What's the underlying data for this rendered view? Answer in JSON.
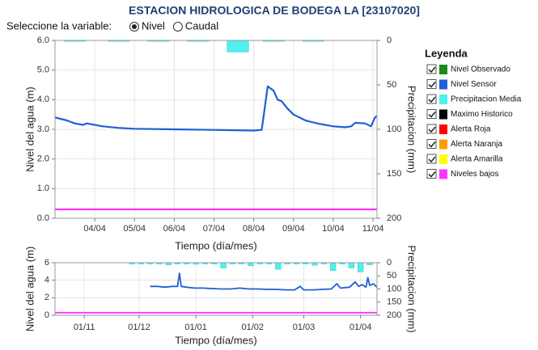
{
  "header": {
    "title": "ESTACION HIDROLOGICA DE BODEGA LA [23107020]"
  },
  "selector": {
    "label": "Seleccione la variable:",
    "options": [
      "Nivel",
      "Caudal"
    ],
    "selected": 0
  },
  "legend": {
    "title": "Leyenda",
    "items": [
      {
        "name": "Nivel Observado",
        "color": "#1a8a1a",
        "checked": true
      },
      {
        "name": "Nivel Sensor",
        "color": "#1f5fd6",
        "checked": true
      },
      {
        "name": "Precipitacion Media",
        "color": "#4ef0f0",
        "checked": true
      },
      {
        "name": "Maximo Historico",
        "color": "#000000",
        "checked": true
      },
      {
        "name": "Alerta Roja",
        "color": "#ff0000",
        "checked": true
      },
      {
        "name": "Alerta Naranja",
        "color": "#ff9900",
        "checked": true
      },
      {
        "name": "Alerta Amarilla",
        "color": "#ffff00",
        "checked": true
      },
      {
        "name": "Niveles bajos",
        "color": "#ff33ff",
        "checked": true
      }
    ]
  },
  "chart_data": [
    {
      "type": "line",
      "xlabel": "Tiempo (día/mes)",
      "ylabel": "Nivel del agua (m)",
      "y2label": "Precipitacion (mm)",
      "xlim": [
        3,
        11.1
      ],
      "xticks": [
        {
          "value": 4,
          "label": "04/04"
        },
        {
          "value": 5,
          "label": "05/04"
        },
        {
          "value": 6,
          "label": "06/04"
        },
        {
          "value": 7,
          "label": "07/04"
        },
        {
          "value": 8,
          "label": "08/04"
        },
        {
          "value": 9,
          "label": "09/04"
        },
        {
          "value": 10,
          "label": "10/04"
        },
        {
          "value": 11,
          "label": "11/04"
        }
      ],
      "ylim": [
        0,
        6
      ],
      "yticks": [
        {
          "value": 0,
          "label": "0.0"
        },
        {
          "value": 1,
          "label": "1.0"
        },
        {
          "value": 2,
          "label": "2.0"
        },
        {
          "value": 3,
          "label": "3.0"
        },
        {
          "value": 4,
          "label": "4.0"
        },
        {
          "value": 5,
          "label": "5.0"
        },
        {
          "value": 6,
          "label": "6.0"
        }
      ],
      "y2lim": [
        0,
        200
      ],
      "y2ticks": [
        0,
        50,
        100,
        150,
        200
      ],
      "y2_inverted": true,
      "grid": true,
      "series": [
        {
          "type": "bar",
          "axis": "y2",
          "color": "#4ef0f0",
          "x": [
            3.5,
            4.6,
            5.6,
            6.6,
            7.6,
            8.5,
            9.5
          ],
          "values": [
            1,
            1,
            1,
            1,
            13,
            1,
            1
          ]
        },
        {
          "type": "line",
          "color": "#ff33ff",
          "x": [
            3,
            11.1
          ],
          "values": [
            0.3,
            0.3
          ]
        },
        {
          "type": "line",
          "color": "#1f5fd6",
          "x": [
            3.0,
            3.3,
            3.5,
            3.7,
            3.8,
            4.2,
            4.6,
            5.0,
            6.0,
            7.0,
            7.5,
            8.0,
            8.2,
            8.35,
            8.5,
            8.6,
            8.7,
            8.85,
            9.0,
            9.3,
            9.6,
            10.0,
            10.3,
            10.45,
            10.55,
            10.8,
            10.95,
            11.05,
            11.1
          ],
          "values": [
            3.4,
            3.3,
            3.2,
            3.15,
            3.2,
            3.1,
            3.05,
            3.02,
            3.0,
            2.98,
            2.97,
            2.96,
            2.98,
            4.45,
            4.3,
            4.0,
            3.95,
            3.7,
            3.5,
            3.3,
            3.2,
            3.1,
            3.07,
            3.1,
            3.22,
            3.2,
            3.1,
            3.4,
            3.45
          ]
        }
      ]
    },
    {
      "type": "line",
      "xlabel": "Tiempo (día/mes)",
      "ylabel": "Nivel del agua (m)",
      "y2label": "Precipitacion (mm)",
      "xlim": [
        -16,
        160
      ],
      "xticks": [
        {
          "value": 0,
          "label": "01/11"
        },
        {
          "value": 30,
          "label": "01/12"
        },
        {
          "value": 61,
          "label": "01/01"
        },
        {
          "value": 92,
          "label": "01/02"
        },
        {
          "value": 120,
          "label": "01/03"
        },
        {
          "value": 151,
          "label": "01/04"
        }
      ],
      "ylim": [
        0,
        6
      ],
      "yticks": [
        0,
        2,
        4,
        6
      ],
      "y2lim": [
        0,
        200
      ],
      "y2ticks": [
        0,
        50,
        100,
        150,
        200
      ],
      "y2_inverted": true,
      "grid": true,
      "series": [
        {
          "type": "bar",
          "axis": "y2",
          "color": "#4ef0f0",
          "x": [
            26,
            31,
            36,
            41,
            46,
            51,
            56,
            61,
            66,
            71,
            76,
            81,
            86,
            91,
            96,
            101,
            106,
            111,
            116,
            121,
            126,
            131,
            136,
            141,
            146,
            151,
            156
          ],
          "values": [
            5,
            5,
            5,
            5,
            8,
            5,
            5,
            6,
            5,
            5,
            20,
            5,
            5,
            12,
            5,
            5,
            25,
            5,
            5,
            5,
            10,
            5,
            30,
            5,
            20,
            35,
            8
          ]
        },
        {
          "type": "line",
          "color": "#ff33ff",
          "x": [
            -16,
            160
          ],
          "values": [
            0.3,
            0.3
          ]
        },
        {
          "type": "line",
          "color": "#1f5fd6",
          "x": [
            36,
            40,
            44,
            48,
            51,
            52,
            53,
            56,
            60,
            65,
            70,
            75,
            80,
            85,
            90,
            95,
            100,
            105,
            110,
            115,
            118,
            120,
            125,
            130,
            135,
            138,
            140,
            145,
            148,
            150,
            152,
            154,
            155,
            156,
            158,
            160
          ],
          "values": [
            3.3,
            3.3,
            3.2,
            3.3,
            3.3,
            4.8,
            3.3,
            3.2,
            3.1,
            3.1,
            3.05,
            3.0,
            3.0,
            3.1,
            3.0,
            3.0,
            2.95,
            2.95,
            2.9,
            2.9,
            3.3,
            2.9,
            2.9,
            2.95,
            3.0,
            3.6,
            3.1,
            3.2,
            3.8,
            3.3,
            3.5,
            3.2,
            4.3,
            3.4,
            3.6,
            3.2
          ]
        }
      ]
    }
  ]
}
